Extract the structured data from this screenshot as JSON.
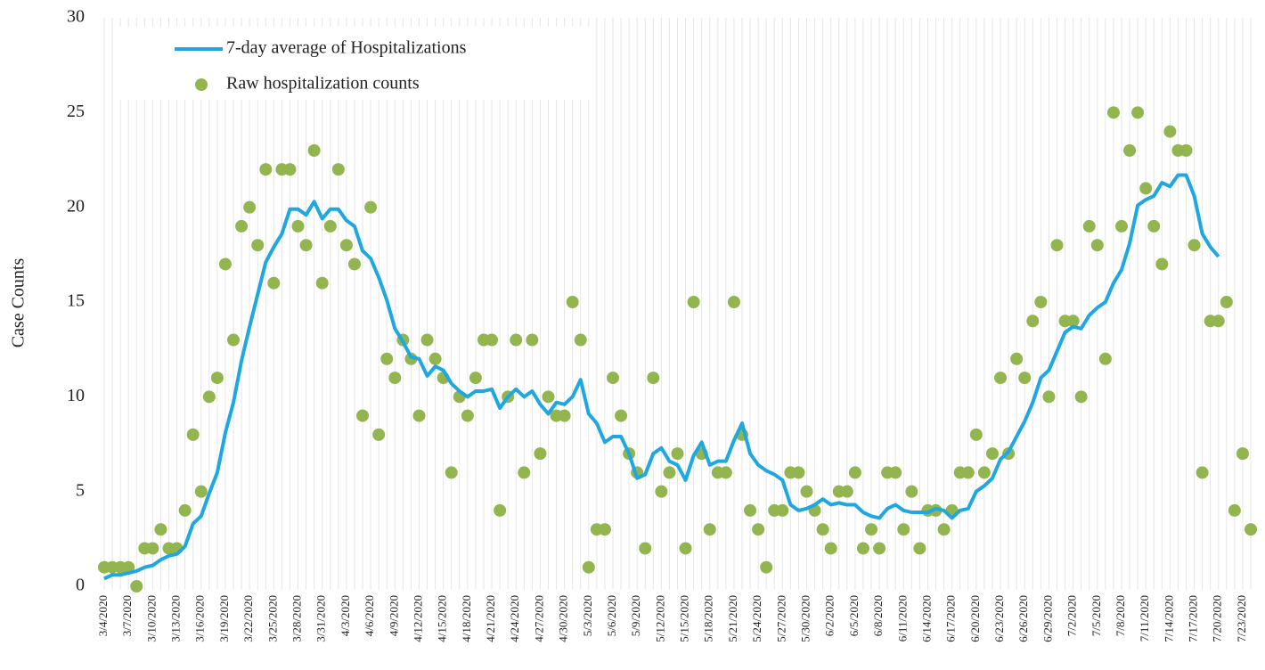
{
  "chart_data": {
    "type": "line",
    "y_label": "Case Counts",
    "categories": [
      "3/4/2020",
      null,
      null,
      "3/7/2020",
      null,
      null,
      "3/10/2020",
      null,
      null,
      "3/13/2020",
      null,
      null,
      "3/16/2020",
      null,
      null,
      "3/19/2020",
      null,
      null,
      "3/22/2020",
      null,
      null,
      "3/25/2020",
      null,
      null,
      "3/28/2020",
      null,
      null,
      "3/31/2020",
      null,
      null,
      "4/3/2020",
      null,
      null,
      "4/6/2020",
      null,
      null,
      "4/9/2020",
      null,
      null,
      "4/12/2020",
      null,
      null,
      "4/15/2020",
      null,
      null,
      "4/18/2020",
      null,
      null,
      "4/21/2020",
      null,
      null,
      "4/24/2020",
      null,
      null,
      "4/27/2020",
      null,
      null,
      "4/30/2020",
      null,
      null,
      "5/3/2020",
      null,
      null,
      "5/6/2020",
      null,
      null,
      "5/9/2020",
      null,
      null,
      "5/12/2020",
      null,
      null,
      "5/15/2020",
      null,
      null,
      "5/18/2020",
      null,
      null,
      "5/21/2020",
      null,
      null,
      "5/24/2020",
      null,
      null,
      "5/27/2020",
      null,
      null,
      "5/30/2020",
      null,
      null,
      "6/2/2020",
      null,
      null,
      "6/5/2020",
      null,
      null,
      "6/8/2020",
      null,
      null,
      "6/11/2020",
      null,
      null,
      "6/14/2020",
      null,
      null,
      "6/17/2020",
      null,
      null,
      "6/20/2020",
      null,
      null,
      "6/23/2020",
      null,
      null,
      "6/26/2020",
      null,
      null,
      "6/29/2020",
      null,
      null,
      "7/2/2020",
      null,
      null,
      "7/5/2020",
      null,
      null,
      "7/8/2020",
      null,
      null,
      "7/11/2020",
      null,
      null,
      "7/14/2020",
      null,
      null,
      "7/17/2020",
      null,
      null,
      "7/20/2020",
      null,
      null,
      "7/23/2020",
      null
    ],
    "series": [
      {
        "name": "7-day average of Hospitalizations",
        "color": "#1ea7e1",
        "style": "line",
        "values": [
          0.4,
          0.6,
          0.6,
          0.7,
          0.8,
          1.0,
          1.1,
          1.4,
          1.6,
          1.7,
          2.1,
          3.3,
          3.7,
          4.9,
          6.0,
          8.1,
          9.7,
          11.9,
          13.7,
          15.4,
          17.1,
          17.9,
          18.6,
          19.9,
          19.9,
          19.6,
          20.3,
          19.4,
          19.9,
          19.9,
          19.3,
          19.0,
          17.7,
          17.3,
          16.3,
          15.1,
          13.6,
          12.9,
          12.1,
          12.0,
          11.1,
          11.6,
          11.4,
          10.7,
          10.3,
          10.0,
          10.3,
          10.3,
          10.4,
          9.4,
          10.0,
          10.4,
          10.0,
          10.3,
          9.6,
          9.1,
          9.7,
          9.6,
          10.0,
          10.9,
          9.1,
          8.6,
          7.6,
          7.9,
          7.9,
          7.0,
          5.7,
          5.9,
          7.0,
          7.3,
          6.6,
          6.4,
          5.6,
          6.9,
          7.6,
          6.4,
          6.6,
          6.6,
          7.7,
          8.6,
          7.0,
          6.4,
          6.1,
          5.9,
          5.6,
          4.3,
          4.0,
          4.1,
          4.3,
          4.6,
          4.3,
          4.4,
          4.3,
          4.3,
          3.9,
          3.7,
          3.6,
          4.1,
          4.3,
          4.0,
          3.9,
          3.9,
          3.9,
          4.1,
          4.0,
          3.6,
          4.0,
          4.1,
          5.0,
          5.3,
          5.7,
          6.7,
          7.1,
          7.9,
          8.7,
          9.7,
          11.0,
          11.4,
          12.4,
          13.4,
          13.7,
          13.6,
          14.3,
          14.7,
          15.0,
          16.0,
          16.7,
          18.1,
          20.1,
          20.4,
          20.6,
          21.3,
          21.1,
          21.7,
          21.7,
          20.6,
          18.6,
          17.9,
          17.4,
          null,
          null,
          null,
          null
        ]
      },
      {
        "name": "Raw hospitalization counts",
        "color": "#92b550",
        "style": "markers",
        "values": [
          1,
          1,
          1,
          1,
          0,
          2,
          2,
          3,
          2,
          2,
          4,
          8,
          5,
          10,
          11,
          17,
          13,
          19,
          20,
          18,
          22,
          16,
          22,
          22,
          19,
          18,
          23,
          16,
          19,
          22,
          18,
          17,
          9,
          20,
          8,
          12,
          11,
          13,
          12,
          9,
          13,
          12,
          11,
          6,
          10,
          9,
          11,
          13,
          13,
          4,
          10,
          13,
          6,
          13,
          7,
          10,
          9,
          9,
          15,
          13,
          1,
          3,
          3,
          11,
          9,
          7,
          6,
          2,
          11,
          5,
          6,
          7,
          2,
          15,
          7,
          3,
          6,
          6,
          15,
          8,
          4,
          3,
          1,
          4,
          4,
          6,
          6,
          5,
          4,
          3,
          2,
          5,
          5,
          6,
          2,
          3,
          2,
          6,
          6,
          3,
          5,
          2,
          4,
          4,
          3,
          4,
          6,
          6,
          8,
          6,
          7,
          11,
          7,
          12,
          11,
          14,
          15,
          10,
          18,
          14,
          14,
          10,
          19,
          18,
          12,
          25,
          19,
          23,
          25,
          21,
          19,
          17,
          24,
          23,
          23,
          18,
          6,
          14,
          14,
          15,
          4,
          7,
          3
        ]
      }
    ],
    "ylim": [
      0,
      30
    ],
    "yticks": [
      0,
      5,
      10,
      15,
      20,
      25,
      30
    ],
    "grid": "x",
    "legend": "upper left"
  }
}
